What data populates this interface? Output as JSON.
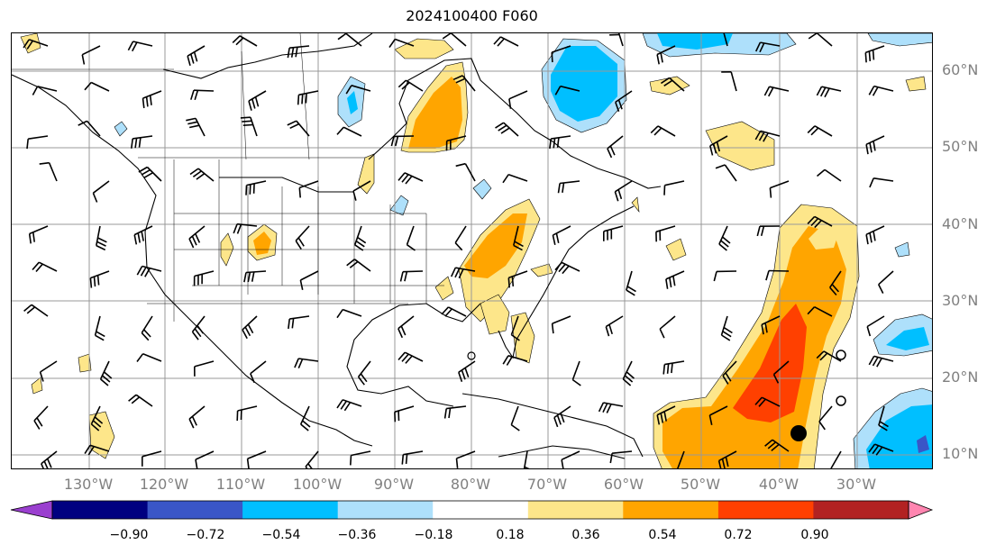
{
  "title": "2024100400 F060",
  "lat_labels": [
    "60°N",
    "50°N",
    "40°N",
    "30°N",
    "20°N",
    "10°N"
  ],
  "lon_labels": [
    "130°W",
    "120°W",
    "110°W",
    "100°W",
    "90°W",
    "80°W",
    "70°W",
    "60°W",
    "50°W",
    "40°W",
    "30°W"
  ],
  "colorbar": {
    "ticks": [
      "−0.90",
      "−0.72",
      "−0.54",
      "−0.36",
      "−0.18",
      "0.18",
      "0.36",
      "0.54",
      "0.72",
      "0.90"
    ],
    "colors": [
      "#9a3fcf",
      "#000080",
      "#3a56c7",
      "#00bfff",
      "#aee0fb",
      "#ffffff",
      "#fde68a",
      "#ffa500",
      "#ff4000",
      "#b22222",
      "#ff85b0"
    ]
  },
  "colors": {
    "pos1": "#fde68a",
    "pos2": "#ffa500",
    "pos3": "#ff4000",
    "neg1": "#aee0fb",
    "neg2": "#00bfff",
    "neg3": "#3a56c7",
    "neg4": "#9a3fcf",
    "coast": "#000000",
    "grid": "#999999"
  }
}
